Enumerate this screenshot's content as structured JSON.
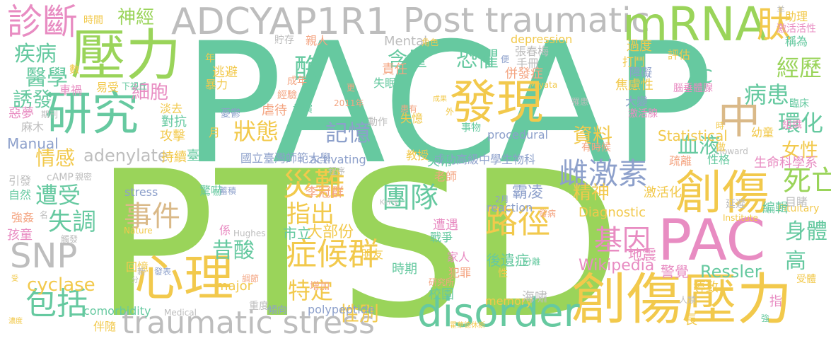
{
  "palette": [
    "#6fcf97",
    "#a6d96a",
    "#f2c94c",
    "#e377c2",
    "#bdbdbd",
    "#56c2a6",
    "#f4a582",
    "#8da0cb",
    "#66c2a5",
    "#e78ac3"
  ],
  "words": [
    {
      "text": "PACAP",
      "color": "#66c9a0"
    },
    {
      "text": "PTSD",
      "color": "#9ad45a"
    },
    {
      "text": "壓力",
      "color": "#9ad45a"
    },
    {
      "text": "研究",
      "color": "#66c9a0"
    },
    {
      "text": "診斷",
      "color": "#e88cc2"
    },
    {
      "text": "ADCYAP1R1",
      "color": "#bdbdbd"
    },
    {
      "text": "Post traumatic",
      "color": "#bdbdbd"
    },
    {
      "text": "mRNA",
      "color": "#9ad45a"
    },
    {
      "text": "肽",
      "color": "#f2c94c"
    },
    {
      "text": "發現",
      "color": "#f2c94c"
    },
    {
      "text": "心理",
      "color": "#f2c94c"
    },
    {
      "text": "創傷壓力",
      "color": "#f2c94c"
    },
    {
      "text": "創傷",
      "color": "#f2c94c"
    },
    {
      "text": "中",
      "color": "#dab988"
    },
    {
      "text": "PAC",
      "color": "#e88cc2"
    },
    {
      "text": "disorder",
      "color": "#66c9a0"
    },
    {
      "text": "traumatic stress",
      "color": "#bdbdbd"
    },
    {
      "text": "症候群",
      "color": "#f2c94c"
    },
    {
      "text": "SNP",
      "color": "#bdbdbd"
    },
    {
      "text": "包括",
      "color": "#66c9a0"
    },
    {
      "text": "團隊",
      "color": "#66c9a0"
    },
    {
      "text": "路徑",
      "color": "#f2c94c"
    },
    {
      "text": "雌激素",
      "color": "#8da0cb"
    },
    {
      "text": "基因",
      "color": "#e88cc2"
    },
    {
      "text": "狀態",
      "color": "#f2c94c"
    },
    {
      "text": "記憶",
      "color": "#8da0cb"
    },
    {
      "text": "血液",
      "color": "#66c9a0"
    },
    {
      "text": "環化",
      "color": "#66c9a0"
    },
    {
      "text": "恐懼",
      "color": "#66c9a0"
    },
    {
      "text": "酶",
      "color": "#66c9a0"
    },
    {
      "text": "含量",
      "color": "#66c9a0"
    },
    {
      "text": "經歷",
      "color": "#9ad45a"
    },
    {
      "text": "病患",
      "color": "#66c9a0"
    },
    {
      "text": "女性",
      "color": "#f2c94c"
    },
    {
      "text": "死亡",
      "color": "#9ad45a"
    },
    {
      "text": "身體",
      "color": "#66c9a0"
    },
    {
      "text": "高",
      "color": "#66c9a0"
    },
    {
      "text": "精神",
      "color": "#f2c94c"
    },
    {
      "text": "指出",
      "color": "#f2c94c"
    },
    {
      "text": "災難",
      "color": "#f2c94c"
    },
    {
      "text": "事件",
      "color": "#dab988"
    },
    {
      "text": "遭受",
      "color": "#66c9a0"
    },
    {
      "text": "失調",
      "color": "#66c9a0"
    },
    {
      "text": "情感",
      "color": "#f2c94c"
    },
    {
      "text": "疾病",
      "color": "#66c9a0"
    },
    {
      "text": "醫學",
      "color": "#66c9a0"
    },
    {
      "text": "誘發",
      "color": "#66c9a0"
    },
    {
      "text": "細胞",
      "color": "#e88cc2"
    },
    {
      "text": "神經",
      "color": "#9ad45a"
    },
    {
      "text": "adenylate",
      "color": "#bdbdbd"
    },
    {
      "text": "cyclase",
      "color": "#f2c94c"
    },
    {
      "text": "昔酸",
      "color": "#66c9a0"
    },
    {
      "text": "特定",
      "color": "#f2c94c"
    },
    {
      "text": "性別",
      "color": "#f2c94c"
    },
    {
      "text": "資料",
      "color": "#f2c94c"
    },
    {
      "text": "AC",
      "color": "#66c9a0"
    },
    {
      "text": "Ressler",
      "color": "#66c9a0"
    },
    {
      "text": "Wikipedia",
      "color": "#e88cc2"
    },
    {
      "text": "Statistical",
      "color": "#f2c94c"
    },
    {
      "text": "Diagnostic",
      "color": "#f2c94c"
    },
    {
      "text": "Manual",
      "color": "#8da0cb"
    },
    {
      "text": "comorbidity",
      "color": "#66c9a0"
    },
    {
      "text": "polypeptide",
      "color": "#8da0cb"
    },
    {
      "text": "activating",
      "color": "#8da0cb"
    },
    {
      "text": "procedural",
      "color": "#8da0cb"
    },
    {
      "text": "reaction",
      "color": "#8da0cb"
    },
    {
      "text": "stress",
      "color": "#8da0cb"
    },
    {
      "text": "major",
      "color": "#f2c94c"
    },
    {
      "text": "memory",
      "color": "#f2c94c"
    },
    {
      "text": "depression",
      "color": "#f2c94c"
    },
    {
      "text": "Mental",
      "color": "#bdbdbd"
    },
    {
      "text": "Pituitary",
      "color": "#f2c94c"
    },
    {
      "text": "Institute",
      "color": "#f2c94c"
    },
    {
      "text": "Howard",
      "color": "#bdbdbd"
    },
    {
      "text": "Hughes",
      "color": "#bdbdbd"
    },
    {
      "text": "Medical",
      "color": "#bdbdbd"
    },
    {
      "text": "Nature",
      "color": "#f2c94c"
    },
    {
      "text": "Kerry",
      "color": "#bdbdbd"
    },
    {
      "text": "Miyata",
      "color": "#f2c94c"
    },
    {
      "text": "cAMP",
      "color": "#bdbdbd"
    },
    {
      "text": "2011年",
      "color": "#f4a582"
    },
    {
      "text": "2月",
      "color": "#8da0cb"
    },
    {
      "text": "國立臺灣師範大學",
      "color": "#8da0cb"
    },
    {
      "text": "成功高級中學生物科",
      "color": "#8da0cb"
    },
    {
      "text": "臺北",
      "color": "#66c9a0"
    },
    {
      "text": "市立",
      "color": "#66c9a0"
    },
    {
      "text": "大部份",
      "color": "#f2c94c"
    },
    {
      "text": "李冠群",
      "color": "#f4a582"
    },
    {
      "text": "霸凌",
      "color": "#8da0cb"
    },
    {
      "text": "張春梅",
      "color": "#bdbdbd"
    },
    {
      "text": "手冊",
      "color": "#bdbdbd"
    },
    {
      "text": "併發症",
      "color": "#f4a582"
    },
    {
      "text": "焦慮性",
      "color": "#f2c94c"
    },
    {
      "text": "障礙",
      "color": "#8da0cb"
    },
    {
      "text": "過度",
      "color": "#f2c94c"
    },
    {
      "text": "打鬥",
      "color": "#f2c94c"
    },
    {
      "text": "評估",
      "color": "#f2c94c"
    },
    {
      "text": "助理",
      "color": "#f2c94c"
    },
    {
      "text": "激活活性",
      "color": "#e88cc2"
    },
    {
      "text": "稱為",
      "color": "#66c9a0"
    },
    {
      "text": "臨床",
      "color": "#66c9a0"
    },
    {
      "text": "腦垂體腺",
      "color": "#e88cc2"
    },
    {
      "text": "組織",
      "color": "#e88cc2"
    },
    {
      "text": "幼童",
      "color": "#f2c94c"
    },
    {
      "text": "生命科學系",
      "color": "#e88cc2"
    },
    {
      "text": "目睹",
      "color": "#bdbdbd"
    },
    {
      "text": "編輯",
      "color": "#66c9a0"
    },
    {
      "text": "延遲",
      "color": "#bdbdbd"
    },
    {
      "text": "激活化",
      "color": "#f2c94c"
    },
    {
      "text": "疏離",
      "color": "#f4a582"
    },
    {
      "text": "性格",
      "color": "#66c9a0"
    },
    {
      "text": "有時候",
      "color": "#f4a582"
    },
    {
      "text": "地震",
      "color": "#e88cc2"
    },
    {
      "text": "警覺",
      "color": "#e88cc2"
    },
    {
      "text": "導致",
      "color": "#f2c94c"
    },
    {
      "text": "受體",
      "color": "#f2c94c"
    },
    {
      "text": "人類",
      "color": "#bdbdbd"
    },
    {
      "text": "長",
      "color": "#f2c94c"
    },
    {
      "text": "指",
      "color": "#e88cc2"
    },
    {
      "text": "強",
      "color": "#66c9a0"
    },
    {
      "text": "霍華德休斯",
      "color": "#f2c94c"
    },
    {
      "text": "海嘯",
      "color": "#bdbdbd"
    },
    {
      "text": "後遺症",
      "color": "#66c9a0"
    },
    {
      "text": "家人",
      "color": "#e88cc2"
    },
    {
      "text": "犯罪",
      "color": "#f4a582"
    },
    {
      "text": "分離",
      "color": "#66c9a0"
    },
    {
      "text": "研究所",
      "color": "#f4a582"
    },
    {
      "text": "校園",
      "color": "#66c9a0"
    },
    {
      "text": "時期",
      "color": "#66c9a0"
    },
    {
      "text": "朋友",
      "color": "#f2c94c"
    },
    {
      "text": "戰爭",
      "color": "#66c9a0"
    },
    {
      "text": "遭遇",
      "color": "#e88cc2"
    },
    {
      "text": "老師",
      "color": "#f4a582"
    },
    {
      "text": "發病",
      "color": "#f4a582"
    },
    {
      "text": "教授",
      "color": "#f2c94c"
    },
    {
      "text": "失常",
      "color": "#66c9a0"
    },
    {
      "text": "失憶",
      "color": "#f2c94c"
    },
    {
      "text": "動作",
      "color": "#bdbdbd"
    },
    {
      "text": "患有",
      "color": "#f4a582"
    },
    {
      "text": "事物",
      "color": "#66c9a0"
    },
    {
      "text": "成果",
      "color": "#f2c94c"
    },
    {
      "text": "失眠",
      "color": "#66c9a0"
    },
    {
      "text": "責任",
      "color": "#f4a582"
    },
    {
      "text": "親人",
      "color": "#f4a582"
    },
    {
      "text": "貯存",
      "color": "#bdbdbd"
    },
    {
      "text": "逃避",
      "color": "#f2c94c"
    },
    {
      "text": "暴力",
      "color": "#f2c94c"
    },
    {
      "text": "經驗",
      "color": "#f4a582"
    },
    {
      "text": "成年",
      "color": "#f4a582"
    },
    {
      "text": "虐待",
      "color": "#f4a582"
    },
    {
      "text": "扮演",
      "color": "#66c9a0"
    },
    {
      "text": "憂鬱",
      "color": "#8da0cb"
    },
    {
      "text": "角色",
      "color": "#f2c94c"
    },
    {
      "text": "時間",
      "color": "#f2c94c"
    },
    {
      "text": "數",
      "color": "#f2c94c"
    },
    {
      "text": "易受",
      "color": "#f2c94c"
    },
    {
      "text": "下視丘",
      "color": "#66c9a0"
    },
    {
      "text": "車禍",
      "color": "#e88cc2"
    },
    {
      "text": "惡夢",
      "color": "#e88cc2"
    },
    {
      "text": "期刊",
      "color": "#bdbdbd"
    },
    {
      "text": "淡去",
      "color": "#f2c94c"
    },
    {
      "text": "麻木",
      "color": "#bdbdbd"
    },
    {
      "text": "對抗",
      "color": "#66c9a0"
    },
    {
      "text": "攻擊",
      "color": "#f2c94c"
    },
    {
      "text": "持續",
      "color": "#f2c94c"
    },
    {
      "text": "引發",
      "color": "#bdbdbd"
    },
    {
      "text": "親密",
      "color": "#bdbdbd"
    },
    {
      "text": "自然",
      "color": "#66c9a0"
    },
    {
      "text": "強姦",
      "color": "#f4a582"
    },
    {
      "text": "孩童",
      "color": "#e88cc2"
    },
    {
      "text": "觸發",
      "color": "#bdbdbd"
    },
    {
      "text": "驚嚇",
      "color": "#66c9a0"
    },
    {
      "text": "蓄積",
      "color": "#8da0cb"
    },
    {
      "text": "程序",
      "color": "#bdbdbd"
    },
    {
      "text": "回憶",
      "color": "#f2c94c"
    },
    {
      "text": "發表",
      "color": "#8da0cb"
    },
    {
      "text": "調節",
      "color": "#f4a582"
    },
    {
      "text": "增加",
      "color": "#f4a582"
    },
    {
      "text": "重度",
      "color": "#bdbdbd"
    },
    {
      "text": "傾向",
      "color": "#8da0cb"
    },
    {
      "text": "伴隨",
      "color": "#f2c94c"
    },
    {
      "text": "濃度",
      "color": "#f2c94c"
    },
    {
      "text": "罹患",
      "color": "#bdbdbd"
    },
    {
      "text": "大變",
      "color": "#8da0cb"
    },
    {
      "text": "激活腺",
      "color": "#e88cc2"
    },
    {
      "text": "羊",
      "color": "#bdbdbd"
    },
    {
      "text": "年",
      "color": "#f2c94c"
    },
    {
      "text": "更",
      "color": "#f4a582"
    },
    {
      "text": "便",
      "color": "#8da0cb"
    },
    {
      "text": "外",
      "color": "#f2c94c"
    },
    {
      "text": "做",
      "color": "#f2c94c"
    },
    {
      "text": "時",
      "color": "#f2c94c"
    },
    {
      "text": "月",
      "color": "#f2c94c"
    },
    {
      "text": "名",
      "color": "#bdbdbd"
    },
    {
      "text": "分",
      "color": "#bdbdbd"
    },
    {
      "text": "新",
      "color": "#bdbdbd"
    },
    {
      "text": "係",
      "color": "#e88cc2"
    },
    {
      "text": "性",
      "color": "#f2c94c"
    },
    {
      "text": "受",
      "color": "#f2c94c"
    }
  ]
}
